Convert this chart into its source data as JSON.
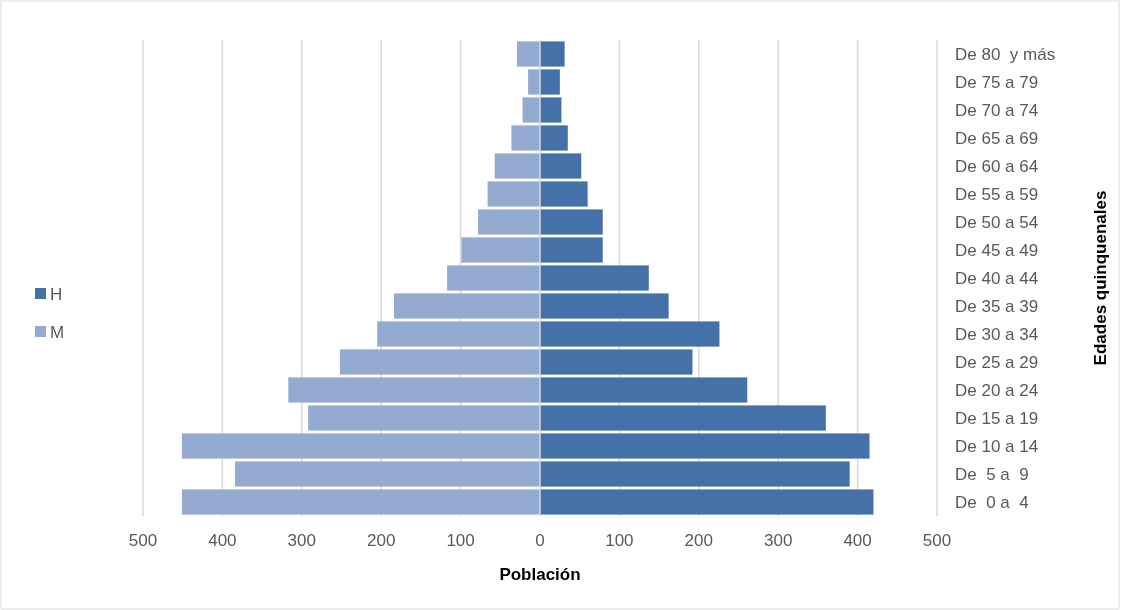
{
  "chart_data": {
    "type": "bar",
    "orientation": "horizontal",
    "xlabel": "Población",
    "ylabel": "Edades quinquenales",
    "categories": [
      "De 80  y más",
      "De 75 a 79",
      "De 70 a 74",
      "De 65 a 69",
      "De 60 a 64",
      "De 55 a 59",
      "De 50 a 54",
      "De 45 a 49",
      "De 40 a 44",
      "De 35 a 39",
      "De 30 a 34",
      "De 25 a 29",
      "De 20 a 24",
      "De 15 a 19",
      "De 10 a 14",
      "De  5 a  9",
      "De  0 a  4"
    ],
    "series": [
      {
        "name": "H",
        "color": "#4472a8",
        "values": [
          31,
          25,
          27,
          35,
          52,
          60,
          79,
          79,
          137,
          162,
          226,
          192,
          261,
          360,
          415,
          390,
          420
        ]
      },
      {
        "name": "M",
        "color": "#95aad1",
        "values": [
          -29,
          -15,
          -22,
          -36,
          -57,
          -66,
          -78,
          -99,
          -117,
          -184,
          -205,
          -252,
          -317,
          -292,
          -451,
          -384,
          -451
        ]
      }
    ],
    "xlim": [
      -500,
      500
    ],
    "xticks": [
      {
        "value": -500,
        "label": "500"
      },
      {
        "value": -400,
        "label": "400"
      },
      {
        "value": -300,
        "label": "300"
      },
      {
        "value": -200,
        "label": "200"
      },
      {
        "value": -100,
        "label": "100"
      },
      0,
      100,
      200,
      300,
      400,
      500
    ],
    "stacked": true,
    "grid": "x",
    "legend": "left"
  }
}
